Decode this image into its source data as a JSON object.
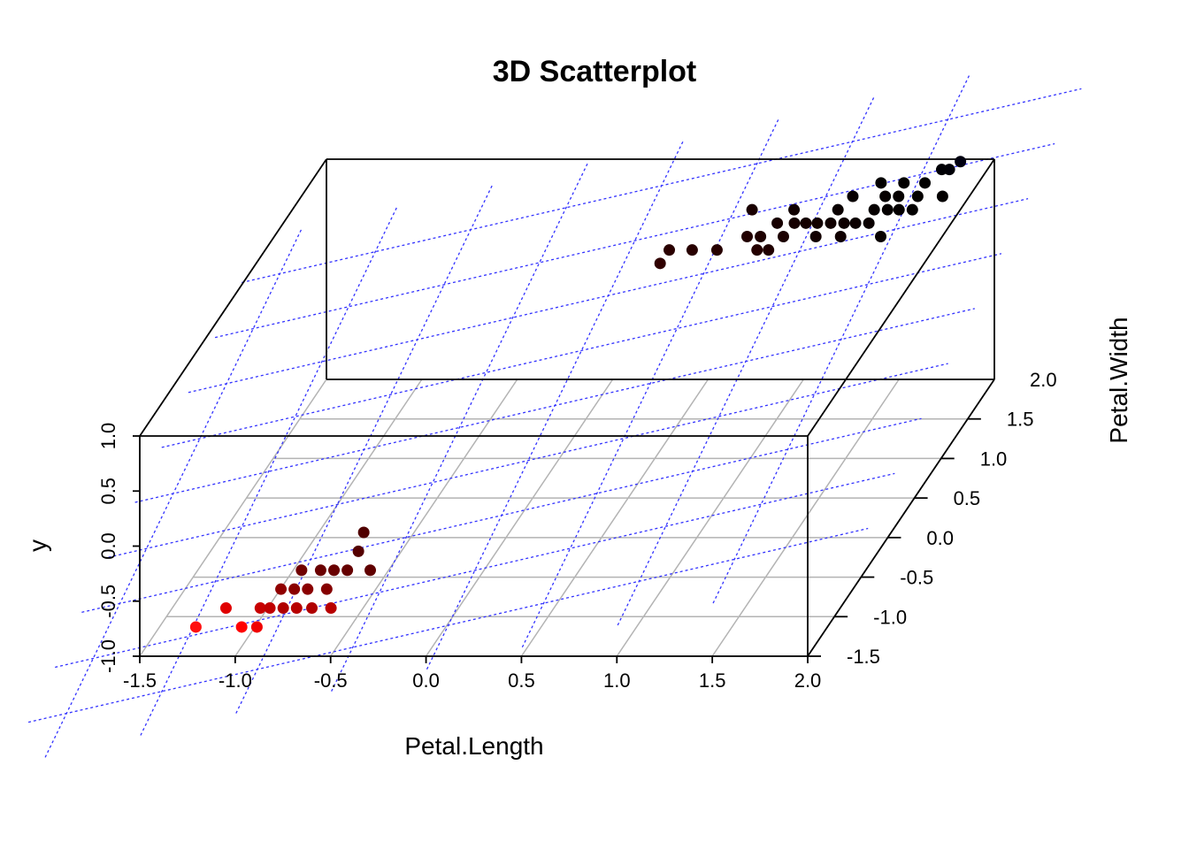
{
  "chart_data": {
    "type": "scatter",
    "title": "3D Scatterplot",
    "xlabel": "Petal.Length",
    "ylabel": "Petal.Width",
    "zlabel": "y",
    "xlim": [
      -1.5,
      2.0
    ],
    "ylim": [
      -1.5,
      2.0
    ],
    "zlim": [
      -1.0,
      1.0
    ],
    "x_ticks": [
      "-1.5",
      "-1.0",
      "-0.5",
      "0.0",
      "0.5",
      "1.0",
      "1.5",
      "2.0"
    ],
    "y_ticks": [
      "-1.5",
      "-1.0",
      "-0.5",
      "0.0",
      "0.5",
      "1.0",
      "1.5",
      "2.0"
    ],
    "z_ticks": [
      "-1.0",
      "-0.5",
      "0.0",
      "0.5",
      "1.0"
    ],
    "grid": true,
    "regression_plane": {
      "color": "#3333ff",
      "style": "dotted"
    },
    "points": [
      {
        "x": -1.29,
        "y": -1.2,
        "z": -0.95,
        "color": "#ff1010"
      },
      {
        "x": -1.16,
        "y": -1.1,
        "z": -0.85,
        "color": "#e00000"
      },
      {
        "x": -1.05,
        "y": -1.2,
        "z": -0.95,
        "color": "#ff0000"
      },
      {
        "x": -0.97,
        "y": -1.2,
        "z": -0.95,
        "color": "#f00000"
      },
      {
        "x": -0.98,
        "y": -1.1,
        "z": -0.85,
        "color": "#c80000"
      },
      {
        "x": -0.93,
        "y": -1.1,
        "z": -0.85,
        "color": "#c00000"
      },
      {
        "x": -0.86,
        "y": -1.1,
        "z": -0.85,
        "color": "#b00000"
      },
      {
        "x": -0.79,
        "y": -1.1,
        "z": -0.85,
        "color": "#b80000"
      },
      {
        "x": -0.71,
        "y": -1.1,
        "z": -0.85,
        "color": "#b00000"
      },
      {
        "x": -0.61,
        "y": -1.1,
        "z": -0.85,
        "color": "#b80000"
      },
      {
        "x": -0.9,
        "y": -1.0,
        "z": -0.75,
        "color": "#900000"
      },
      {
        "x": -0.83,
        "y": -1.0,
        "z": -0.75,
        "color": "#8a0000"
      },
      {
        "x": -0.76,
        "y": -1.0,
        "z": -0.75,
        "color": "#8a0000"
      },
      {
        "x": -0.66,
        "y": -1.0,
        "z": -0.75,
        "color": "#850000"
      },
      {
        "x": -0.82,
        "y": -0.9,
        "z": -0.65,
        "color": "#700000"
      },
      {
        "x": -0.72,
        "y": -0.9,
        "z": -0.65,
        "color": "#6a0000"
      },
      {
        "x": -0.65,
        "y": -0.9,
        "z": -0.65,
        "color": "#680000"
      },
      {
        "x": -0.58,
        "y": -0.9,
        "z": -0.65,
        "color": "#650000"
      },
      {
        "x": -0.46,
        "y": -0.9,
        "z": -0.65,
        "color": "#600000"
      },
      {
        "x": -0.55,
        "y": -0.8,
        "z": -0.55,
        "color": "#550000"
      },
      {
        "x": -0.55,
        "y": -0.7,
        "z": -0.45,
        "color": "#500000"
      },
      {
        "x": 0.5,
        "y": 1.1,
        "z": 0.7,
        "color": "#300000"
      },
      {
        "x": 0.52,
        "y": 1.2,
        "z": 0.75,
        "color": "#2a0000"
      },
      {
        "x": 0.64,
        "y": 1.2,
        "z": 0.75,
        "color": "#280000"
      },
      {
        "x": 0.77,
        "y": 1.2,
        "z": 0.75,
        "color": "#260000"
      },
      {
        "x": 0.9,
        "y": 1.3,
        "z": 0.8,
        "color": "#220000"
      },
      {
        "x": 0.98,
        "y": 1.2,
        "z": 0.75,
        "color": "#240000"
      },
      {
        "x": 1.04,
        "y": 1.2,
        "z": 0.75,
        "color": "#200000"
      },
      {
        "x": 0.97,
        "y": 1.3,
        "z": 0.8,
        "color": "#1e0000"
      },
      {
        "x": 1.09,
        "y": 1.3,
        "z": 0.8,
        "color": "#1c0000"
      },
      {
        "x": 1.03,
        "y": 1.4,
        "z": 0.85,
        "color": "#180000"
      },
      {
        "x": 1.12,
        "y": 1.4,
        "z": 0.85,
        "color": "#160000"
      },
      {
        "x": 1.18,
        "y": 1.4,
        "z": 0.85,
        "color": "#140000"
      },
      {
        "x": 1.24,
        "y": 1.4,
        "z": 0.85,
        "color": "#120000"
      },
      {
        "x": 1.31,
        "y": 1.4,
        "z": 0.85,
        "color": "#100000"
      },
      {
        "x": 1.38,
        "y": 1.4,
        "z": 0.85,
        "color": "#0e0000"
      },
      {
        "x": 1.44,
        "y": 1.4,
        "z": 0.85,
        "color": "#0c0000"
      },
      {
        "x": 1.51,
        "y": 1.4,
        "z": 0.85,
        "color": "#0a0000"
      },
      {
        "x": 1.26,
        "y": 1.3,
        "z": 0.8,
        "color": "#120000"
      },
      {
        "x": 1.39,
        "y": 1.3,
        "z": 0.8,
        "color": "#100000"
      },
      {
        "x": 1.6,
        "y": 1.3,
        "z": 0.8,
        "color": "#080000"
      },
      {
        "x": 0.87,
        "y": 1.5,
        "z": 0.9,
        "color": "#1a0000"
      },
      {
        "x": 1.09,
        "y": 1.5,
        "z": 0.9,
        "color": "#100000"
      },
      {
        "x": 1.32,
        "y": 1.5,
        "z": 0.9,
        "color": "#0a0000"
      },
      {
        "x": 1.37,
        "y": 1.6,
        "z": 0.95,
        "color": "#080000"
      },
      {
        "x": 1.54,
        "y": 1.6,
        "z": 0.95,
        "color": "#060000"
      },
      {
        "x": 1.61,
        "y": 1.6,
        "z": 0.95,
        "color": "#050000"
      },
      {
        "x": 1.71,
        "y": 1.6,
        "z": 0.95,
        "color": "#040000"
      },
      {
        "x": 1.84,
        "y": 1.6,
        "z": 0.95,
        "color": "#030000"
      },
      {
        "x": 1.51,
        "y": 1.5,
        "z": 0.9,
        "color": "#060000"
      },
      {
        "x": 1.58,
        "y": 1.5,
        "z": 0.9,
        "color": "#050000"
      },
      {
        "x": 1.64,
        "y": 1.5,
        "z": 0.9,
        "color": "#040000"
      },
      {
        "x": 1.71,
        "y": 1.5,
        "z": 0.9,
        "color": "#030000"
      },
      {
        "x": 1.49,
        "y": 1.7,
        "z": 1.0,
        "color": "#020000"
      },
      {
        "x": 1.61,
        "y": 1.7,
        "z": 1.0,
        "color": "#020000"
      },
      {
        "x": 1.72,
        "y": 1.7,
        "z": 1.0,
        "color": "#010000"
      },
      {
        "x": 1.85,
        "y": 1.9,
        "z": 1.05,
        "color": "#000010"
      },
      {
        "x": 1.82,
        "y": 1.8,
        "z": 1.05,
        "color": "#000008"
      },
      {
        "x": 1.78,
        "y": 1.8,
        "z": 1.05,
        "color": "#000005"
      }
    ]
  }
}
